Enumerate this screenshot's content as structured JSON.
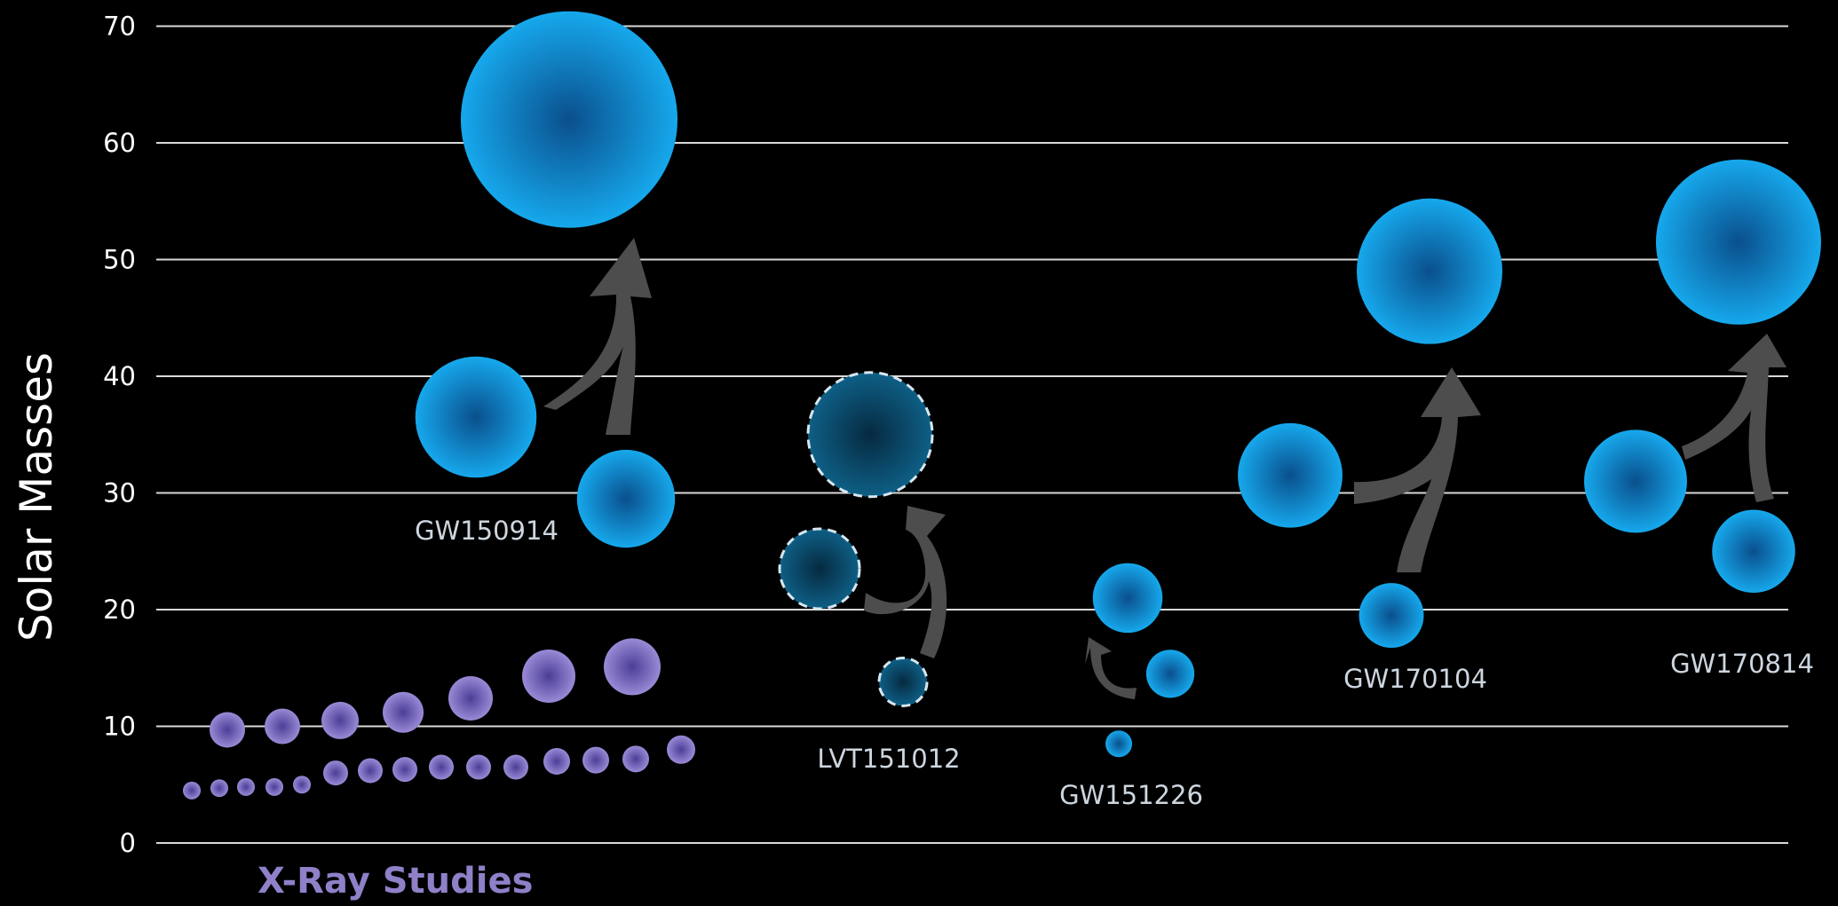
{
  "chart_data": {
    "type": "scatter",
    "ylabel": "Solar Masses",
    "ylim": [
      0,
      70
    ],
    "yticks": [
      "0",
      "10",
      "20",
      "30",
      "40",
      "50",
      "60",
      "70"
    ],
    "grid": true,
    "xray": {
      "label": "X-Ray Studies",
      "color": "#8a78c8",
      "masses": [
        4.5,
        4.7,
        4.8,
        4.8,
        5.0,
        6.0,
        6.2,
        6.3,
        6.5,
        6.5,
        6.5,
        7.0,
        7.1,
        7.2,
        8.0,
        9.7,
        10.0,
        10.5,
        11.2,
        12.4,
        14.3,
        15.1
      ]
    },
    "events": [
      {
        "name": "GW150914",
        "primary": 36.5,
        "secondary": 29.5,
        "final": 62,
        "style": "confirmed"
      },
      {
        "name": "LVT151012",
        "primary": 35,
        "secondary": 13.8,
        "final": 23.5,
        "style": "candidate",
        "note": "final shown lower than initial — dashed/darker circles"
      },
      {
        "name": "GW151226",
        "primary": 21,
        "secondary": 14.5,
        "final": 8.5,
        "style": "confirmed"
      },
      {
        "name": "GW170104",
        "primary": 31.5,
        "secondary": 19.5,
        "final": 49,
        "style": "confirmed"
      },
      {
        "name": "GW170814",
        "primary": 31,
        "secondary": 25,
        "final": 51.5,
        "style": "confirmed"
      }
    ],
    "colors": {
      "confirmed_center": "#0a4f8c",
      "confirmed_edge": "#16a8ec",
      "candidate_center": "#062a40",
      "candidate_edge": "#0e5f86",
      "arrow": "#4d4d4d",
      "grid": "#d9d9d9"
    }
  }
}
